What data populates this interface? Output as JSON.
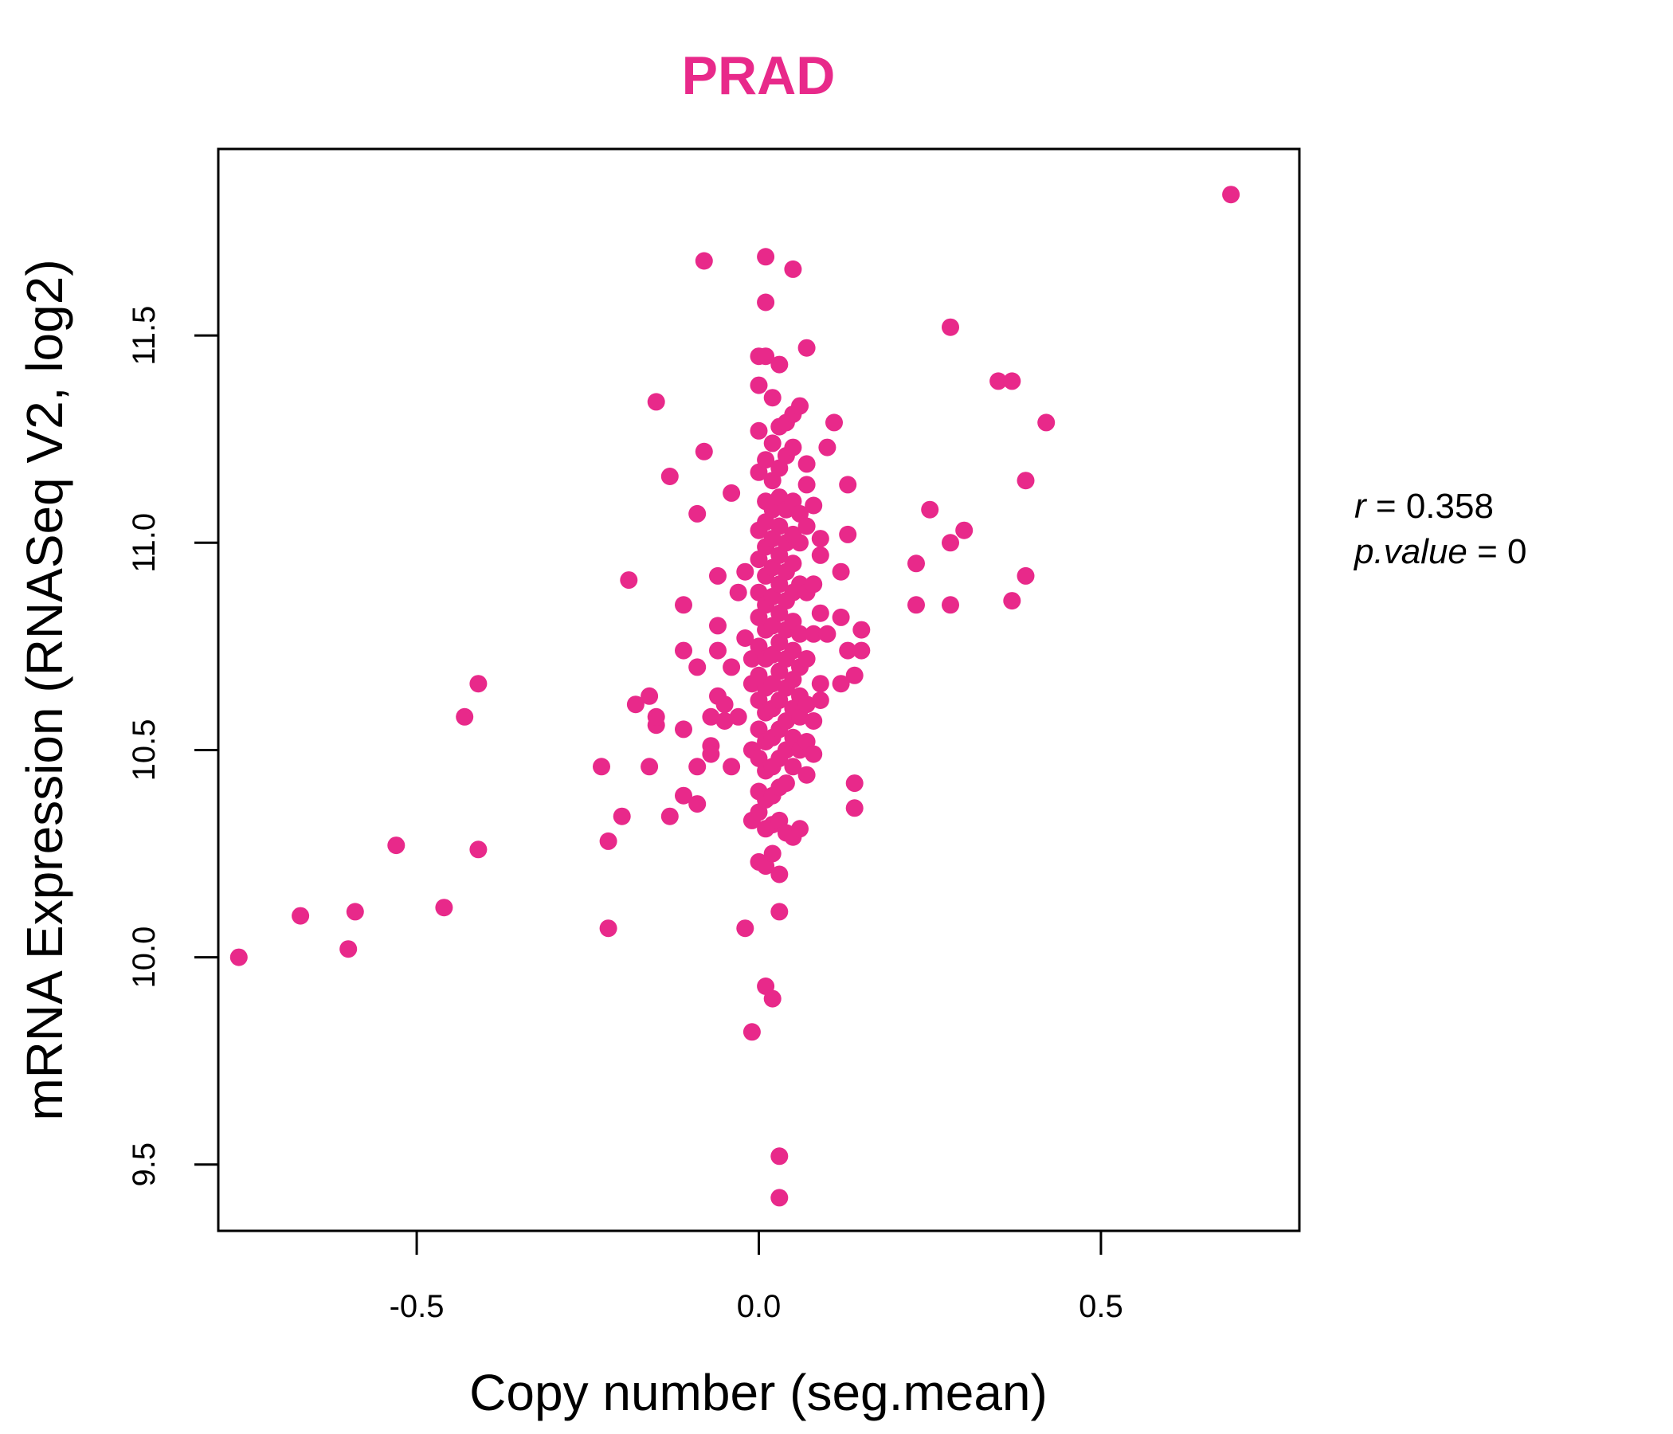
{
  "chart_data": {
    "type": "scatter",
    "title": "PRAD",
    "xlabel": "Copy number (seg.mean)",
    "ylabel": "mRNA Expression (RNASeq V2, log2)",
    "xlim": [
      -0.79,
      0.79
    ],
    "ylim": [
      9.34,
      11.95
    ],
    "x_ticks": [
      -0.5,
      0.0,
      0.5
    ],
    "x_tick_labels": [
      "-0.5",
      "0.0",
      "0.5"
    ],
    "y_ticks": [
      9.5,
      10.0,
      10.5,
      11.0,
      11.5
    ],
    "y_tick_labels": [
      "9.5",
      "10.0",
      "10.5",
      "11.0",
      "11.5"
    ],
    "grid": false,
    "annotations": {
      "r_label": "r",
      "r_value": "0.358",
      "p_label": "p.value",
      "p_value": "0"
    },
    "colors": {
      "points": "#E8298A",
      "title": "#E8298A",
      "axes": "#000000"
    },
    "series": [
      {
        "points": [
          [
            -0.76,
            10.0
          ],
          [
            -0.67,
            10.1
          ],
          [
            -0.6,
            10.02
          ],
          [
            -0.59,
            10.11
          ],
          [
            -0.53,
            10.27
          ],
          [
            -0.46,
            10.12
          ],
          [
            -0.43,
            10.58
          ],
          [
            -0.41,
            10.66
          ],
          [
            -0.41,
            10.26
          ],
          [
            -0.23,
            10.46
          ],
          [
            -0.22,
            10.28
          ],
          [
            -0.22,
            10.07
          ],
          [
            -0.2,
            10.34
          ],
          [
            -0.19,
            10.91
          ],
          [
            -0.18,
            10.61
          ],
          [
            -0.16,
            10.63
          ],
          [
            -0.16,
            10.46
          ],
          [
            -0.15,
            10.56
          ],
          [
            -0.15,
            10.58
          ],
          [
            -0.15,
            11.34
          ],
          [
            -0.13,
            11.16
          ],
          [
            -0.13,
            10.34
          ],
          [
            -0.11,
            10.39
          ],
          [
            -0.11,
            10.55
          ],
          [
            -0.11,
            10.85
          ],
          [
            -0.11,
            10.74
          ],
          [
            -0.09,
            10.7
          ],
          [
            -0.09,
            11.07
          ],
          [
            -0.09,
            10.46
          ],
          [
            -0.09,
            10.37
          ],
          [
            -0.08,
            11.22
          ],
          [
            -0.08,
            11.68
          ],
          [
            -0.07,
            10.58
          ],
          [
            -0.07,
            10.51
          ],
          [
            -0.07,
            10.49
          ],
          [
            -0.06,
            10.63
          ],
          [
            -0.06,
            10.8
          ],
          [
            -0.06,
            10.74
          ],
          [
            -0.06,
            10.92
          ],
          [
            -0.05,
            10.61
          ],
          [
            -0.05,
            10.57
          ],
          [
            -0.04,
            10.7
          ],
          [
            -0.04,
            10.46
          ],
          [
            -0.04,
            11.12
          ],
          [
            -0.03,
            10.88
          ],
          [
            -0.03,
            10.58
          ],
          [
            -0.02,
            10.93
          ],
          [
            -0.02,
            10.77
          ],
          [
            -0.02,
            10.07
          ],
          [
            -0.01,
            10.72
          ],
          [
            -0.01,
            10.66
          ],
          [
            -0.01,
            10.5
          ],
          [
            -0.01,
            10.33
          ],
          [
            -0.01,
            9.82
          ],
          [
            0.0,
            11.45
          ],
          [
            0.0,
            11.38
          ],
          [
            0.0,
            11.27
          ],
          [
            0.0,
            11.17
          ],
          [
            0.0,
            11.03
          ],
          [
            0.0,
            10.96
          ],
          [
            0.0,
            10.88
          ],
          [
            0.0,
            10.82
          ],
          [
            0.0,
            10.75
          ],
          [
            0.0,
            10.68
          ],
          [
            0.0,
            10.62
          ],
          [
            0.0,
            10.55
          ],
          [
            0.0,
            10.48
          ],
          [
            0.0,
            10.4
          ],
          [
            0.0,
            10.35
          ],
          [
            0.0,
            10.23
          ],
          [
            0.01,
            11.58
          ],
          [
            0.01,
            11.45
          ],
          [
            0.01,
            11.2
          ],
          [
            0.01,
            11.1
          ],
          [
            0.01,
            11.05
          ],
          [
            0.01,
            10.99
          ],
          [
            0.01,
            10.92
          ],
          [
            0.01,
            10.85
          ],
          [
            0.01,
            10.79
          ],
          [
            0.01,
            10.72
          ],
          [
            0.01,
            10.65
          ],
          [
            0.01,
            10.59
          ],
          [
            0.01,
            10.52
          ],
          [
            0.01,
            10.45
          ],
          [
            0.01,
            10.38
          ],
          [
            0.01,
            10.31
          ],
          [
            0.01,
            10.22
          ],
          [
            0.01,
            9.93
          ],
          [
            0.01,
            11.69
          ],
          [
            0.02,
            11.35
          ],
          [
            0.02,
            11.24
          ],
          [
            0.02,
            11.15
          ],
          [
            0.02,
            11.08
          ],
          [
            0.02,
            11.01
          ],
          [
            0.02,
            10.94
          ],
          [
            0.02,
            10.87
          ],
          [
            0.02,
            10.8
          ],
          [
            0.02,
            10.73
          ],
          [
            0.02,
            10.66
          ],
          [
            0.02,
            10.6
          ],
          [
            0.02,
            10.53
          ],
          [
            0.02,
            10.46
          ],
          [
            0.02,
            10.39
          ],
          [
            0.02,
            10.32
          ],
          [
            0.02,
            10.25
          ],
          [
            0.02,
            9.9
          ],
          [
            0.03,
            11.43
          ],
          [
            0.03,
            11.28
          ],
          [
            0.03,
            11.18
          ],
          [
            0.03,
            11.11
          ],
          [
            0.03,
            11.04
          ],
          [
            0.03,
            10.97
          ],
          [
            0.03,
            10.9
          ],
          [
            0.03,
            10.83
          ],
          [
            0.03,
            10.76
          ],
          [
            0.03,
            10.69
          ],
          [
            0.03,
            10.62
          ],
          [
            0.03,
            10.55
          ],
          [
            0.03,
            10.48
          ],
          [
            0.03,
            10.41
          ],
          [
            0.03,
            10.33
          ],
          [
            0.03,
            10.11
          ],
          [
            0.03,
            9.52
          ],
          [
            0.03,
            9.42
          ],
          [
            0.03,
            10.2
          ],
          [
            0.04,
            11.29
          ],
          [
            0.04,
            11.21
          ],
          [
            0.04,
            11.08
          ],
          [
            0.04,
            11.0
          ],
          [
            0.04,
            10.93
          ],
          [
            0.04,
            10.86
          ],
          [
            0.04,
            10.79
          ],
          [
            0.04,
            10.72
          ],
          [
            0.04,
            10.65
          ],
          [
            0.04,
            10.57
          ],
          [
            0.04,
            10.5
          ],
          [
            0.04,
            10.42
          ],
          [
            0.04,
            10.3
          ],
          [
            0.05,
            11.66
          ],
          [
            0.05,
            11.31
          ],
          [
            0.05,
            11.23
          ],
          [
            0.05,
            11.1
          ],
          [
            0.05,
            11.02
          ],
          [
            0.05,
            10.95
          ],
          [
            0.05,
            10.88
          ],
          [
            0.05,
            10.81
          ],
          [
            0.05,
            10.74
          ],
          [
            0.05,
            10.67
          ],
          [
            0.05,
            10.6
          ],
          [
            0.05,
            10.53
          ],
          [
            0.05,
            10.46
          ],
          [
            0.05,
            10.29
          ],
          [
            0.06,
            11.33
          ],
          [
            0.06,
            11.07
          ],
          [
            0.06,
            11.0
          ],
          [
            0.06,
            10.9
          ],
          [
            0.06,
            10.78
          ],
          [
            0.06,
            10.7
          ],
          [
            0.06,
            10.63
          ],
          [
            0.06,
            10.58
          ],
          [
            0.06,
            10.5
          ],
          [
            0.06,
            10.31
          ],
          [
            0.07,
            11.47
          ],
          [
            0.07,
            11.19
          ],
          [
            0.07,
            11.14
          ],
          [
            0.07,
            11.04
          ],
          [
            0.07,
            10.88
          ],
          [
            0.07,
            10.72
          ],
          [
            0.07,
            10.61
          ],
          [
            0.07,
            10.52
          ],
          [
            0.07,
            10.44
          ],
          [
            0.08,
            11.09
          ],
          [
            0.08,
            10.9
          ],
          [
            0.08,
            10.78
          ],
          [
            0.08,
            10.57
          ],
          [
            0.08,
            10.49
          ],
          [
            0.09,
            11.01
          ],
          [
            0.09,
            10.97
          ],
          [
            0.09,
            10.83
          ],
          [
            0.09,
            10.66
          ],
          [
            0.09,
            10.62
          ],
          [
            0.1,
            11.23
          ],
          [
            0.1,
            10.78
          ],
          [
            0.11,
            11.29
          ],
          [
            0.12,
            10.93
          ],
          [
            0.12,
            10.82
          ],
          [
            0.12,
            10.66
          ],
          [
            0.13,
            11.02
          ],
          [
            0.13,
            11.14
          ],
          [
            0.13,
            10.74
          ],
          [
            0.14,
            10.68
          ],
          [
            0.14,
            10.36
          ],
          [
            0.14,
            10.42
          ],
          [
            0.15,
            10.74
          ],
          [
            0.15,
            10.79
          ],
          [
            0.23,
            10.95
          ],
          [
            0.23,
            10.85
          ],
          [
            0.25,
            11.08
          ],
          [
            0.28,
            11.52
          ],
          [
            0.28,
            11.0
          ],
          [
            0.28,
            10.85
          ],
          [
            0.3,
            11.03
          ],
          [
            0.35,
            11.39
          ],
          [
            0.37,
            11.39
          ],
          [
            0.37,
            10.86
          ],
          [
            0.39,
            11.15
          ],
          [
            0.39,
            10.92
          ],
          [
            0.42,
            11.29
          ],
          [
            0.69,
            11.84
          ]
        ]
      }
    ]
  }
}
